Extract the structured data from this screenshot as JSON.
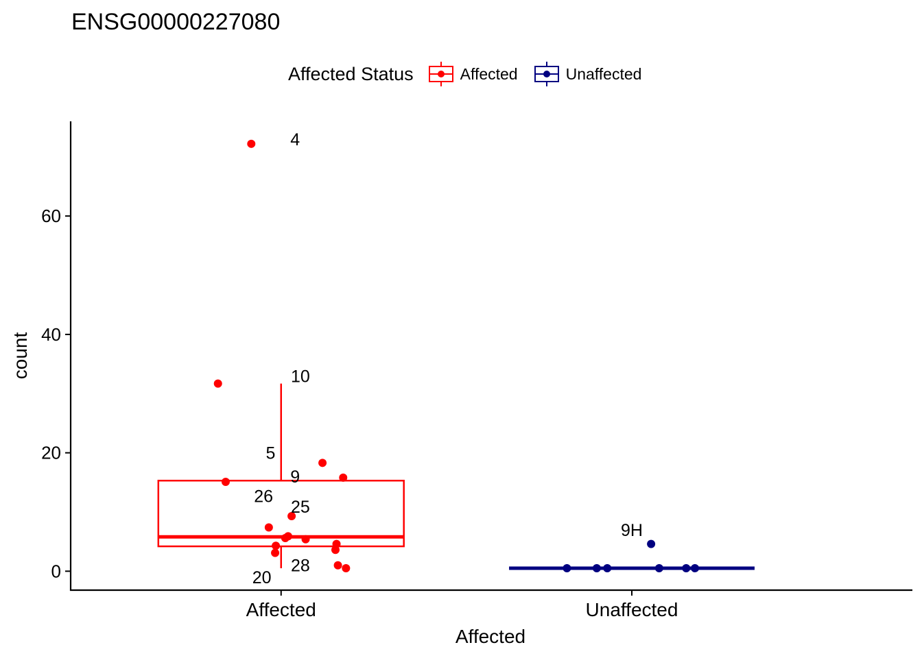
{
  "chart_data": {
    "type": "box",
    "title": "ENSG00000227080",
    "xlabel": "Affected",
    "ylabel": "count",
    "categories": [
      "Affected",
      "Unaffected"
    ],
    "y_ticks": [
      0,
      20,
      40,
      60
    ],
    "y_tick_labels": [
      "0",
      "20",
      "40",
      "60"
    ],
    "ylim": [
      -3.2,
      76.0
    ],
    "grid": false,
    "legend": {
      "title": "Affected Status",
      "placement": "top",
      "entries": [
        {
          "name": "Affected",
          "color": "#ff0000"
        },
        {
          "name": "Unaffected",
          "color": "#000080"
        }
      ]
    },
    "series": [
      {
        "name": "Affected",
        "category": "Affected",
        "color": "#ff0000",
        "box": {
          "q1": 4.2,
          "median": 5.8,
          "q3": 15.3,
          "whisker_low": 0.5,
          "whisker_high": 31.7
        },
        "points": [
          {
            "x": -0.085,
            "y": 72.2
          },
          {
            "x": -0.18,
            "y": 31.7
          },
          {
            "x": 0.118,
            "y": 18.3
          },
          {
            "x": 0.177,
            "y": 15.8
          },
          {
            "x": -0.158,
            "y": 15.1
          },
          {
            "x": 0.03,
            "y": 9.3
          },
          {
            "x": -0.035,
            "y": 7.4
          },
          {
            "x": 0.02,
            "y": 5.9
          },
          {
            "x": 0.012,
            "y": 5.6
          },
          {
            "x": 0.07,
            "y": 5.4
          },
          {
            "x": 0.158,
            "y": 4.6
          },
          {
            "x": -0.015,
            "y": 4.3
          },
          {
            "x": 0.155,
            "y": 3.6
          },
          {
            "x": -0.017,
            "y": 3.1
          },
          {
            "x": 0.162,
            "y": 1.0
          },
          {
            "x": 0.185,
            "y": 0.5
          }
        ]
      },
      {
        "name": "Unaffected",
        "category": "Unaffected",
        "color": "#000080",
        "box": {
          "q1": 0.5,
          "median": 0.5,
          "q3": 0.5,
          "whisker_low": 0.5,
          "whisker_high": 0.5
        },
        "points": [
          {
            "x": 0.055,
            "y": 4.6
          },
          {
            "x": -0.185,
            "y": 0.5
          },
          {
            "x": -0.1,
            "y": 0.5
          },
          {
            "x": -0.07,
            "y": 0.5
          },
          {
            "x": 0.078,
            "y": 0.5
          },
          {
            "x": 0.155,
            "y": 0.5
          },
          {
            "x": 0.18,
            "y": 0.5
          }
        ]
      }
    ],
    "annotations": [
      {
        "text": "4",
        "category": "Affected",
        "x": 0.04,
        "y": 73.0
      },
      {
        "text": "10",
        "category": "Affected",
        "x": 0.055,
        "y": 33.0
      },
      {
        "text": "5",
        "category": "Affected",
        "x": -0.03,
        "y": 20.0
      },
      {
        "text": "9",
        "category": "Affected",
        "x": 0.04,
        "y": 16.0
      },
      {
        "text": "26",
        "category": "Affected",
        "x": -0.05,
        "y": 12.7
      },
      {
        "text": "25",
        "category": "Affected",
        "x": 0.055,
        "y": 10.9
      },
      {
        "text": "28",
        "category": "Affected",
        "x": 0.055,
        "y": 1.0
      },
      {
        "text": "20",
        "category": "Affected",
        "x": -0.055,
        "y": -1.0
      },
      {
        "text": "9H",
        "category": "Unaffected",
        "x": 0.0,
        "y": 7.0
      }
    ]
  }
}
